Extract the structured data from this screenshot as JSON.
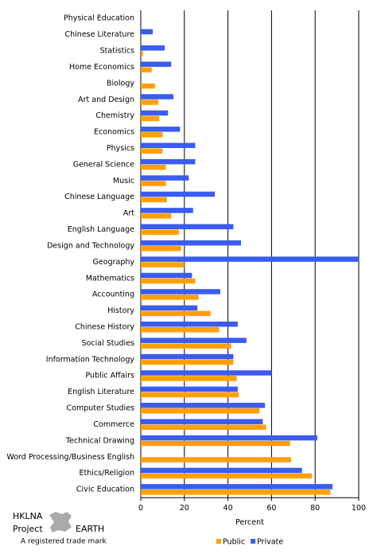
{
  "chart_data": {
    "type": "hbar",
    "categories": [
      "Physical Education",
      "Chinese Literature",
      "Statistics",
      "Home Economics",
      "Biology",
      "Art and Design",
      "Chemistry",
      "Economics",
      "Physics",
      "General Science",
      "Music",
      "Chinese Language",
      "Art",
      "English Language",
      "Design and Technology",
      "Geography",
      "Mathematics",
      "Accounting",
      "History",
      "Chinese History",
      "Social Studies",
      "Information Technology",
      "Public Affairs",
      "English Literature",
      "Computer Studies",
      "Commerce",
      "Technical Drawing",
      "Word Processing/Business English",
      "Ethics/Religion",
      "Civic Education"
    ],
    "series": [
      {
        "name": "Private",
        "color": "#3a5cf0",
        "values": [
          0,
          5.5,
          11,
          14,
          0,
          15,
          12.5,
          18,
          25,
          25,
          22,
          34,
          24,
          42.5,
          46,
          100,
          23.5,
          36.5,
          26,
          44.5,
          48.5,
          42.5,
          60,
          44.5,
          57,
          56,
          81,
          0,
          74,
          88
        ]
      },
      {
        "name": "Public",
        "color": "#ffa000",
        "values": [
          0,
          0,
          1,
          5,
          6.5,
          8,
          8.5,
          10,
          10,
          11.5,
          11.5,
          12,
          14,
          17.5,
          18.5,
          20,
          25,
          26.5,
          32,
          36,
          41.5,
          42.5,
          44,
          45,
          54.5,
          57.5,
          68.5,
          69,
          78.5,
          87
        ]
      }
    ],
    "legend_order": [
      1,
      0
    ],
    "xlabel": "Percent",
    "xlim": [
      0,
      100
    ],
    "xticks": [
      0,
      20,
      40,
      60,
      80,
      100
    ],
    "grid": true
  },
  "logo": {
    "line1": "HKLNA",
    "line2": "Project",
    "line3": "EARTH",
    "tagline": "A registered trade mark"
  }
}
